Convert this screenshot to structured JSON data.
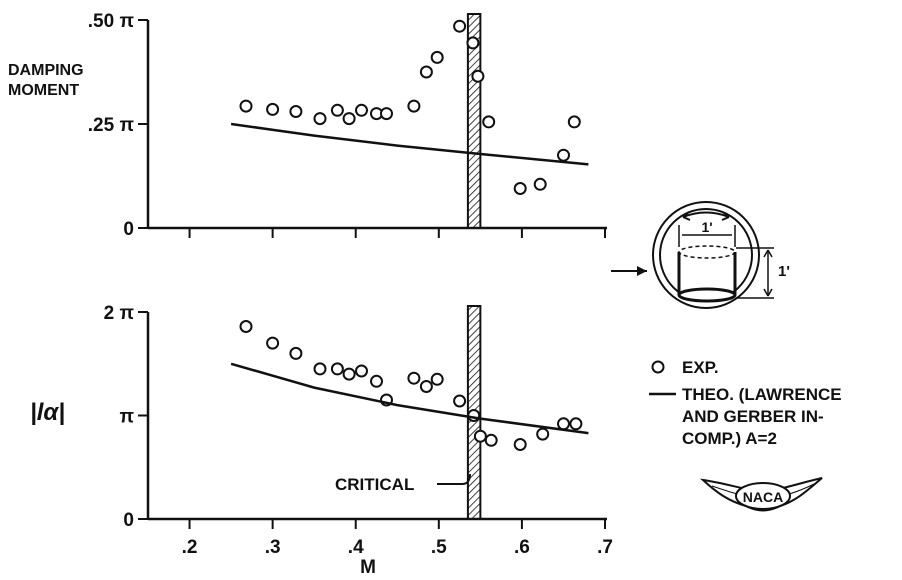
{
  "chart_data": [
    {
      "type": "scatter",
      "ylabel": "DAMPING MOMENT",
      "xlim": [
        0.15,
        0.7
      ],
      "ylim": [
        0,
        0.5
      ],
      "y_unit": "π (fraction of pi)",
      "y_ticks": [
        {
          "value": 0,
          "label": "0"
        },
        {
          "value": 0.25,
          "label": ".25 π"
        },
        {
          "value": 0.5,
          "label": ".50 π"
        }
      ],
      "critical_band": [
        0.535,
        0.55
      ],
      "series": [
        {
          "name": "EXP.",
          "style": "circles",
          "points": [
            [
              0.268,
              0.293
            ],
            [
              0.3,
              0.285
            ],
            [
              0.328,
              0.28
            ],
            [
              0.357,
              0.263
            ],
            [
              0.378,
              0.283
            ],
            [
              0.392,
              0.263
            ],
            [
              0.407,
              0.283
            ],
            [
              0.425,
              0.275
            ],
            [
              0.437,
              0.275
            ],
            [
              0.47,
              0.293
            ],
            [
              0.485,
              0.375
            ],
            [
              0.498,
              0.41
            ],
            [
              0.525,
              0.485
            ],
            [
              0.541,
              0.445
            ],
            [
              0.547,
              0.365
            ],
            [
              0.56,
              0.255
            ],
            [
              0.598,
              0.095
            ],
            [
              0.622,
              0.105
            ],
            [
              0.65,
              0.175
            ],
            [
              0.663,
              0.255
            ]
          ]
        },
        {
          "name": "THEO. (LAWRENCE AND GERBER IN-COMP.) A=2",
          "style": "line",
          "points": [
            [
              0.25,
              0.25
            ],
            [
              0.35,
              0.222
            ],
            [
              0.45,
              0.198
            ],
            [
              0.55,
              0.178
            ],
            [
              0.68,
              0.153
            ]
          ]
        }
      ]
    },
    {
      "type": "scatter",
      "ylabel": "|lα|",
      "xlabel": "M",
      "xlim": [
        0.15,
        0.7
      ],
      "ylim": [
        0,
        2
      ],
      "y_unit": "π (multiple of pi)",
      "x_ticks": [
        ".2",
        ".3",
        ".4",
        ".5",
        ".6",
        ".7"
      ],
      "y_ticks": [
        {
          "value": 0,
          "label": "0"
        },
        {
          "value": 1,
          "label": "π"
        },
        {
          "value": 2,
          "label": "2 π"
        }
      ],
      "critical_band": [
        0.535,
        0.55
      ],
      "series": [
        {
          "name": "EXP.",
          "style": "circles",
          "points": [
            [
              0.268,
              1.86
            ],
            [
              0.3,
              1.7
            ],
            [
              0.328,
              1.6
            ],
            [
              0.357,
              1.45
            ],
            [
              0.378,
              1.45
            ],
            [
              0.392,
              1.4
            ],
            [
              0.407,
              1.43
            ],
            [
              0.425,
              1.33
            ],
            [
              0.437,
              1.15
            ],
            [
              0.47,
              1.36
            ],
            [
              0.485,
              1.28
            ],
            [
              0.498,
              1.35
            ],
            [
              0.525,
              1.14
            ],
            [
              0.542,
              1.0
            ],
            [
              0.55,
              0.8
            ],
            [
              0.563,
              0.76
            ],
            [
              0.598,
              0.72
            ],
            [
              0.625,
              0.82
            ],
            [
              0.65,
              0.92
            ],
            [
              0.665,
              0.92
            ]
          ]
        },
        {
          "name": "THEO. (LAWRENCE AND GERBER IN-COMP.) A=2",
          "style": "line",
          "points": [
            [
              0.25,
              1.5
            ],
            [
              0.35,
              1.27
            ],
            [
              0.45,
              1.1
            ],
            [
              0.55,
              0.97
            ],
            [
              0.68,
              0.83
            ]
          ]
        }
      ]
    }
  ],
  "labels": {
    "top_y_axis_title_line1": "DAMPING",
    "top_y_axis_title_line2": "MOMENT",
    "bottom_y_axis_title": "|lα|",
    "x_axis_title": "M",
    "critical_label": "CRITICAL",
    "legend_exp": "EXP.",
    "legend_theo_line1": "THEO. (LAWRENCE",
    "legend_theo_line2": "AND GERBER IN-",
    "legend_theo_line3": "COMP.) A=2",
    "logo_text": "NACA",
    "sketch_dim": "1'"
  },
  "colors": {
    "ink": "#111111",
    "background": "#ffffff"
  }
}
